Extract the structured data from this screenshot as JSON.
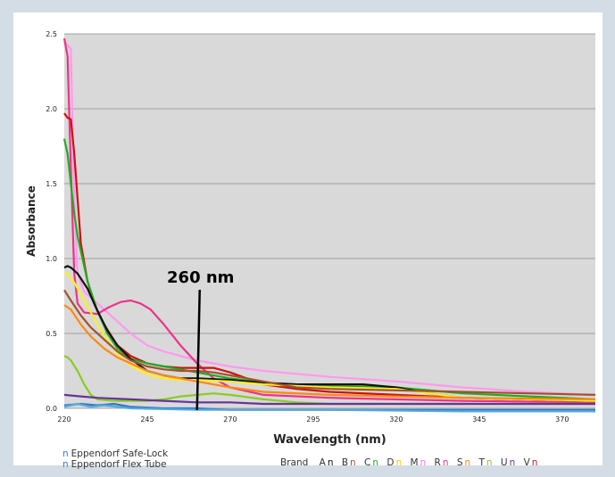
{
  "chart_data": {
    "type": "line",
    "title": "",
    "xlabel": "Wavelength (nm)",
    "ylabel": "Absorbance",
    "xlim": [
      220,
      380
    ],
    "ylim": [
      0,
      2.5
    ],
    "x_ticks": [
      "220",
      "245",
      "270",
      "295",
      "320",
      "345",
      "370"
    ],
    "y_ticks": [
      "0.0",
      "0.5",
      "1.0",
      "1.5",
      "2.0",
      "2.5"
    ],
    "grid": "horizontal",
    "annotation": {
      "label": "260 nm",
      "x": 260
    },
    "series": [
      {
        "color": "#ff99ee",
        "points": [
          [
            220,
            2.45
          ],
          [
            222,
            2.4
          ],
          [
            223,
            1.4
          ],
          [
            224,
            0.9
          ],
          [
            226,
            0.78
          ],
          [
            230,
            0.7
          ],
          [
            235,
            0.6
          ],
          [
            240,
            0.5
          ],
          [
            245,
            0.42
          ],
          [
            250,
            0.38
          ],
          [
            255,
            0.35
          ],
          [
            260,
            0.32
          ],
          [
            270,
            0.28
          ],
          [
            280,
            0.25
          ],
          [
            300,
            0.21
          ],
          [
            320,
            0.18
          ],
          [
            340,
            0.14
          ],
          [
            360,
            0.11
          ],
          [
            380,
            0.09
          ]
        ]
      },
      {
        "color": "#ee3388",
        "points": [
          [
            220,
            2.47
          ],
          [
            221,
            2.35
          ],
          [
            222,
            1.6
          ],
          [
            223,
            0.9
          ],
          [
            224,
            0.7
          ],
          [
            226,
            0.64
          ],
          [
            230,
            0.63
          ],
          [
            233,
            0.67
          ],
          [
            237,
            0.71
          ],
          [
            240,
            0.72
          ],
          [
            243,
            0.7
          ],
          [
            246,
            0.66
          ],
          [
            250,
            0.56
          ],
          [
            255,
            0.42
          ],
          [
            260,
            0.3
          ],
          [
            265,
            0.2
          ],
          [
            270,
            0.14
          ],
          [
            280,
            0.09
          ],
          [
            300,
            0.07
          ],
          [
            340,
            0.05
          ],
          [
            380,
            0.04
          ]
        ]
      },
      {
        "color": "#cc1111",
        "points": [
          [
            220,
            1.97
          ],
          [
            221,
            1.94
          ],
          [
            222,
            1.93
          ],
          [
            223,
            1.7
          ],
          [
            224,
            1.4
          ],
          [
            225,
            1.1
          ],
          [
            227,
            0.85
          ],
          [
            229,
            0.7
          ],
          [
            232,
            0.56
          ],
          [
            236,
            0.42
          ],
          [
            240,
            0.35
          ],
          [
            245,
            0.3
          ],
          [
            250,
            0.28
          ],
          [
            255,
            0.27
          ],
          [
            260,
            0.27
          ],
          [
            265,
            0.27
          ],
          [
            270,
            0.24
          ],
          [
            275,
            0.2
          ],
          [
            280,
            0.16
          ],
          [
            290,
            0.13
          ],
          [
            300,
            0.11
          ],
          [
            320,
            0.09
          ],
          [
            340,
            0.07
          ],
          [
            360,
            0.06
          ],
          [
            380,
            0.05
          ]
        ]
      },
      {
        "color": "#22aa22",
        "points": [
          [
            220,
            1.8
          ],
          [
            221,
            1.7
          ],
          [
            222,
            1.5
          ],
          [
            223,
            1.3
          ],
          [
            224,
            1.15
          ],
          [
            225,
            1.05
          ],
          [
            227,
            0.85
          ],
          [
            230,
            0.65
          ],
          [
            233,
            0.5
          ],
          [
            236,
            0.4
          ],
          [
            240,
            0.33
          ],
          [
            245,
            0.3
          ],
          [
            250,
            0.28
          ],
          [
            255,
            0.26
          ],
          [
            260,
            0.24
          ],
          [
            270,
            0.2
          ],
          [
            280,
            0.17
          ],
          [
            290,
            0.16
          ],
          [
            300,
            0.15
          ],
          [
            320,
            0.14
          ],
          [
            340,
            0.1
          ],
          [
            360,
            0.08
          ],
          [
            380,
            0.06
          ]
        ]
      },
      {
        "color": "#111111",
        "points": [
          [
            220,
            0.94
          ],
          [
            221,
            0.95
          ],
          [
            222,
            0.94
          ],
          [
            224,
            0.9
          ],
          [
            227,
            0.8
          ],
          [
            230,
            0.65
          ],
          [
            233,
            0.52
          ],
          [
            236,
            0.42
          ],
          [
            240,
            0.33
          ],
          [
            245,
            0.25
          ],
          [
            250,
            0.22
          ],
          [
            255,
            0.2
          ],
          [
            260,
            0.2
          ],
          [
            270,
            0.19
          ],
          [
            280,
            0.17
          ],
          [
            290,
            0.16
          ],
          [
            300,
            0.16
          ],
          [
            310,
            0.16
          ],
          [
            320,
            0.14
          ],
          [
            330,
            0.1
          ],
          [
            340,
            0.07
          ],
          [
            360,
            0.06
          ],
          [
            380,
            0.05
          ]
        ]
      },
      {
        "color": "#ffee22",
        "points": [
          [
            220,
            0.9
          ],
          [
            221,
            0.9
          ],
          [
            223,
            0.84
          ],
          [
            226,
            0.72
          ],
          [
            230,
            0.56
          ],
          [
            234,
            0.42
          ],
          [
            238,
            0.32
          ],
          [
            242,
            0.26
          ],
          [
            246,
            0.22
          ],
          [
            250,
            0.2
          ],
          [
            255,
            0.19
          ],
          [
            260,
            0.19
          ],
          [
            270,
            0.18
          ],
          [
            280,
            0.16
          ],
          [
            290,
            0.15
          ],
          [
            300,
            0.14
          ],
          [
            320,
            0.13
          ],
          [
            330,
            0.1
          ],
          [
            340,
            0.07
          ],
          [
            360,
            0.06
          ],
          [
            380,
            0.05
          ]
        ]
      },
      {
        "color": "#a0522d",
        "points": [
          [
            220,
            0.79
          ],
          [
            222,
            0.72
          ],
          [
            225,
            0.62
          ],
          [
            228,
            0.54
          ],
          [
            232,
            0.46
          ],
          [
            236,
            0.38
          ],
          [
            240,
            0.32
          ],
          [
            245,
            0.28
          ],
          [
            250,
            0.26
          ],
          [
            255,
            0.25
          ],
          [
            260,
            0.25
          ],
          [
            265,
            0.24
          ],
          [
            270,
            0.22
          ],
          [
            280,
            0.18
          ],
          [
            290,
            0.14
          ],
          [
            300,
            0.13
          ],
          [
            320,
            0.12
          ],
          [
            340,
            0.11
          ],
          [
            360,
            0.1
          ],
          [
            380,
            0.09
          ]
        ]
      },
      {
        "color": "#ff8811",
        "points": [
          [
            220,
            0.69
          ],
          [
            222,
            0.66
          ],
          [
            225,
            0.56
          ],
          [
            228,
            0.48
          ],
          [
            232,
            0.4
          ],
          [
            236,
            0.34
          ],
          [
            240,
            0.3
          ],
          [
            245,
            0.25
          ],
          [
            250,
            0.22
          ],
          [
            255,
            0.2
          ],
          [
            260,
            0.18
          ],
          [
            270,
            0.14
          ],
          [
            280,
            0.11
          ],
          [
            300,
            0.09
          ],
          [
            320,
            0.08
          ],
          [
            340,
            0.07
          ],
          [
            380,
            0.06
          ]
        ]
      },
      {
        "color": "#88cc22",
        "points": [
          [
            220,
            0.35
          ],
          [
            221,
            0.34
          ],
          [
            222,
            0.32
          ],
          [
            224,
            0.25
          ],
          [
            226,
            0.16
          ],
          [
            228,
            0.09
          ],
          [
            230,
            0.06
          ],
          [
            235,
            0.05
          ],
          [
            240,
            0.05
          ],
          [
            245,
            0.05
          ],
          [
            250,
            0.06
          ],
          [
            255,
            0.08
          ],
          [
            260,
            0.09
          ],
          [
            265,
            0.1
          ],
          [
            270,
            0.09
          ],
          [
            280,
            0.06
          ],
          [
            290,
            0.04
          ],
          [
            300,
            0.03
          ],
          [
            340,
            0.03
          ],
          [
            380,
            0.03
          ]
        ]
      },
      {
        "color": "#663399",
        "points": [
          [
            220,
            0.09
          ],
          [
            225,
            0.08
          ],
          [
            230,
            0.07
          ],
          [
            240,
            0.06
          ],
          [
            250,
            0.05
          ],
          [
            260,
            0.04
          ],
          [
            270,
            0.04
          ],
          [
            280,
            0.03
          ],
          [
            300,
            0.03
          ],
          [
            340,
            0.03
          ],
          [
            380,
            0.03
          ]
        ]
      },
      {
        "color": "#3377cc",
        "points": [
          [
            220,
            0.02
          ],
          [
            225,
            0.03
          ],
          [
            230,
            0.02
          ],
          [
            235,
            0.03
          ],
          [
            240,
            0.01
          ],
          [
            250,
            0.0
          ],
          [
            260,
            0.0
          ],
          [
            270,
            -0.01
          ],
          [
            280,
            -0.01
          ],
          [
            300,
            -0.01
          ],
          [
            340,
            -0.01
          ],
          [
            380,
            -0.01
          ]
        ]
      },
      {
        "color": "#55aadd",
        "points": [
          [
            220,
            0.01
          ],
          [
            224,
            0.03
          ],
          [
            228,
            0.01
          ],
          [
            232,
            0.02
          ],
          [
            240,
            0.0
          ],
          [
            260,
            -0.01
          ],
          [
            300,
            -0.01
          ],
          [
            340,
            -0.02
          ],
          [
            380,
            -0.02
          ]
        ]
      }
    ]
  },
  "legend": {
    "markers": [
      {
        "marker": "n",
        "label": "Eppendorf Safe-Lock"
      },
      {
        "marker": "n",
        "label": "Eppendorf Flex Tube"
      }
    ],
    "brand_title": "Brand",
    "brands": [
      {
        "letter": "A",
        "marker": "n",
        "color": "#111111"
      },
      {
        "letter": "B",
        "marker": "n",
        "color": "#a0522d"
      },
      {
        "letter": "C",
        "marker": "n",
        "color": "#22aa22"
      },
      {
        "letter": "D",
        "marker": "n",
        "color": "#ffcc00"
      },
      {
        "letter": "M",
        "marker": "n",
        "color": "#ff77dd"
      },
      {
        "letter": "R",
        "marker": "n",
        "color": "#ee3388"
      },
      {
        "letter": "S",
        "marker": "n",
        "color": "#ff8811"
      },
      {
        "letter": "T",
        "marker": "n",
        "color": "#88cc22"
      },
      {
        "letter": "U",
        "marker": "n",
        "color": "#663399"
      },
      {
        "letter": "V",
        "marker": "n",
        "color": "#cc1111"
      }
    ]
  }
}
